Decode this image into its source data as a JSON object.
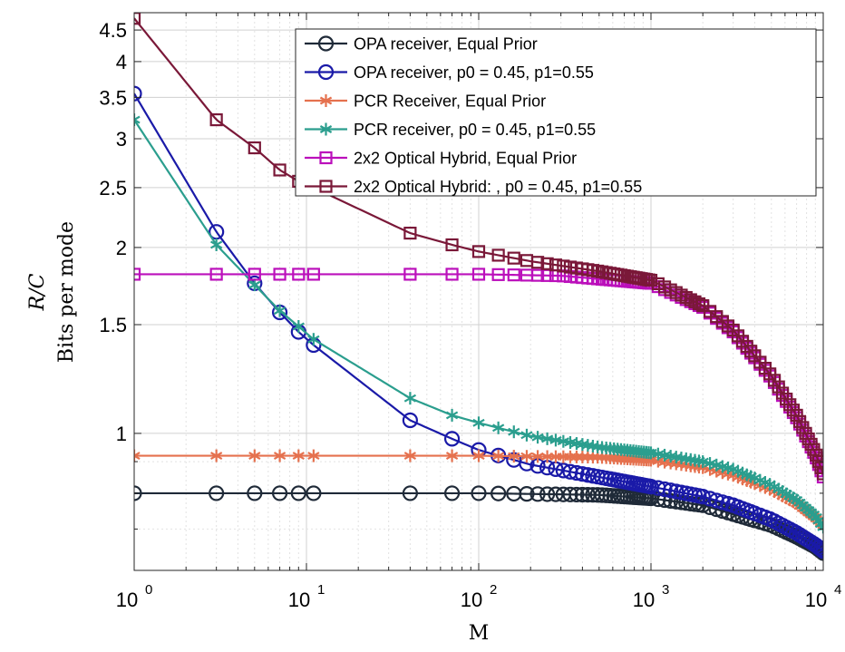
{
  "chart_data": {
    "type": "line",
    "xlabel": "M",
    "ylabel_line1": "R/C",
    "ylabel_line2": "Bits per mode",
    "xscale": "log",
    "yscale": "log",
    "xlim": [
      1,
      10000
    ],
    "ylim": [
      0.6,
      4.8
    ],
    "grid": true,
    "legend_position": "top-right",
    "x_ticks": [
      {
        "value": 1,
        "base": "10",
        "exp": "0"
      },
      {
        "value": 10,
        "base": "10",
        "exp": "1"
      },
      {
        "value": 100,
        "base": "10",
        "exp": "2"
      },
      {
        "value": 1000,
        "base": "10",
        "exp": "3"
      },
      {
        "value": 10000,
        "base": "10",
        "exp": "4"
      }
    ],
    "y_ticks": [
      {
        "value": 1,
        "label": "1"
      },
      {
        "value": 1.5,
        "label": "1.5"
      },
      {
        "value": 2,
        "label": "2"
      },
      {
        "value": 2.5,
        "label": "2.5"
      },
      {
        "value": 3,
        "label": "3"
      },
      {
        "value": 3.5,
        "label": "3.5"
      },
      {
        "value": 4,
        "label": "4"
      },
      {
        "value": 4.5,
        "label": "4.5"
      }
    ],
    "marker_x": [
      1,
      3,
      5,
      7,
      9,
      11,
      40,
      70,
      100,
      130,
      160,
      190,
      220,
      250,
      280,
      310,
      340,
      370,
      400,
      430,
      460,
      490,
      520,
      550,
      580,
      610,
      640,
      670,
      700,
      730,
      760,
      790,
      820,
      850,
      880,
      910,
      940,
      970,
      1000,
      1100,
      1200,
      1300,
      1400,
      1500,
      1600,
      1700,
      1800,
      1900,
      2000,
      2200,
      2400,
      2600,
      2800,
      3000,
      3200,
      3400,
      3600,
      3800,
      4000,
      4300,
      4600,
      4900,
      5200,
      5500,
      5800,
      6100,
      6400,
      6700,
      7000,
      7300,
      7600,
      7900,
      8200,
      8500,
      8800,
      9100,
      9400,
      9700,
      10000
    ],
    "series": [
      {
        "name": "OPA receiver, Equal Prior",
        "color": "#1f2a38",
        "marker": "circle",
        "points": [
          [
            1,
            0.8
          ],
          [
            100,
            0.8
          ],
          [
            500,
            0.795
          ],
          [
            1000,
            0.785
          ],
          [
            2000,
            0.765
          ],
          [
            3000,
            0.74
          ],
          [
            5000,
            0.71
          ],
          [
            7000,
            0.68
          ],
          [
            9000,
            0.655
          ],
          [
            10000,
            0.64
          ]
        ]
      },
      {
        "name": "OPA receiver, p0 = 0.45, p1=0.55",
        "color": "#1a1aa8",
        "marker": "circle",
        "points": [
          [
            1,
            3.55
          ],
          [
            3,
            2.12
          ],
          [
            5,
            1.75
          ],
          [
            7,
            1.57
          ],
          [
            9,
            1.46
          ],
          [
            11,
            1.39
          ],
          [
            40,
            1.05
          ],
          [
            70,
            0.98
          ],
          [
            100,
            0.94
          ],
          [
            200,
            0.89
          ],
          [
            500,
            0.85
          ],
          [
            1000,
            0.82
          ],
          [
            2000,
            0.79
          ],
          [
            3000,
            0.765
          ],
          [
            5000,
            0.725
          ],
          [
            7000,
            0.69
          ],
          [
            9000,
            0.66
          ],
          [
            10000,
            0.645
          ]
        ]
      },
      {
        "name": "PCR Receiver, Equal Prior",
        "color": "#e5714e",
        "marker": "asterisk",
        "points": [
          [
            1,
            0.92
          ],
          [
            100,
            0.92
          ],
          [
            500,
            0.915
          ],
          [
            1000,
            0.905
          ],
          [
            2000,
            0.88
          ],
          [
            3000,
            0.855
          ],
          [
            5000,
            0.81
          ],
          [
            7000,
            0.77
          ],
          [
            9000,
            0.73
          ],
          [
            10000,
            0.71
          ]
        ]
      },
      {
        "name": "PCR receiver, p0 = 0.45, p1=0.55",
        "color": "#2b9e8e",
        "marker": "asterisk",
        "points": [
          [
            1,
            3.22
          ],
          [
            3,
            2.02
          ],
          [
            5,
            1.74
          ],
          [
            7,
            1.58
          ],
          [
            9,
            1.49
          ],
          [
            11,
            1.42
          ],
          [
            40,
            1.14
          ],
          [
            70,
            1.07
          ],
          [
            100,
            1.04
          ],
          [
            200,
            0.99
          ],
          [
            500,
            0.95
          ],
          [
            1000,
            0.93
          ],
          [
            2000,
            0.9
          ],
          [
            3000,
            0.875
          ],
          [
            5000,
            0.825
          ],
          [
            7000,
            0.78
          ],
          [
            9000,
            0.735
          ],
          [
            10000,
            0.705
          ]
        ]
      },
      {
        "name": "2x2 Optical Hybrid, Equal Prior",
        "color": "#bb10bb",
        "marker": "square",
        "points": [
          [
            1,
            1.81
          ],
          [
            100,
            1.81
          ],
          [
            300,
            1.8
          ],
          [
            1000,
            1.75
          ],
          [
            2000,
            1.6
          ],
          [
            3000,
            1.46
          ],
          [
            5000,
            1.23
          ],
          [
            7000,
            1.06
          ],
          [
            9000,
            0.92
          ],
          [
            10000,
            0.85
          ]
        ]
      },
      {
        "name": "2x2 Optical Hybrid: , p0 = 0.45, p1=0.55",
        "color": "#7a1838",
        "marker": "square",
        "points": [
          [
            1,
            4.7
          ],
          [
            3,
            3.22
          ],
          [
            5,
            2.9
          ],
          [
            7,
            2.67
          ],
          [
            9,
            2.56
          ],
          [
            11,
            2.5
          ],
          [
            40,
            2.11
          ],
          [
            70,
            2.02
          ],
          [
            100,
            1.97
          ],
          [
            200,
            1.9
          ],
          [
            500,
            1.83
          ],
          [
            1000,
            1.77
          ],
          [
            2000,
            1.61
          ],
          [
            3000,
            1.47
          ],
          [
            5000,
            1.24
          ],
          [
            7000,
            1.07
          ],
          [
            9000,
            0.93
          ],
          [
            10000,
            0.86
          ]
        ]
      }
    ]
  }
}
